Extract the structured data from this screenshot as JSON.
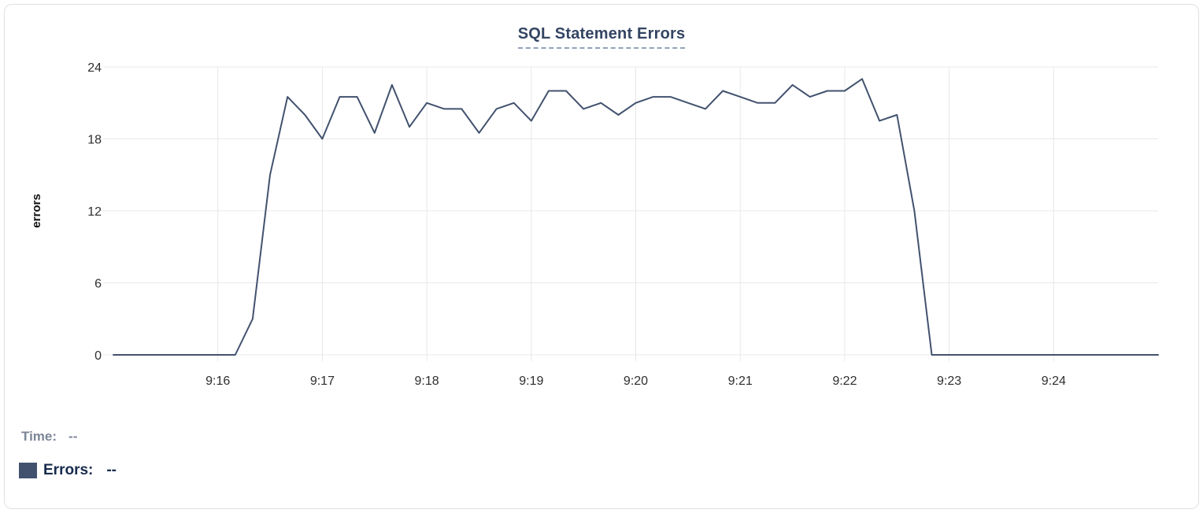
{
  "card": {
    "title": "SQL Statement Errors"
  },
  "legend": {
    "time_label": "Time:",
    "time_value": "--",
    "errors_label": "Errors:",
    "errors_value": "--",
    "swatch_color": "#42526e"
  },
  "colors": {
    "line": "#42526e",
    "title": "#344563",
    "grid": "#e8e8e8",
    "time_text": "#7c8698",
    "errors_text": "#172b4d"
  },
  "chart_data": {
    "type": "line",
    "title": "SQL Statement Errors",
    "xlabel": "",
    "ylabel": "errors",
    "x_start": "9:15:00",
    "x_end": "9:25:00",
    "x_ticks": [
      "9:16",
      "9:17",
      "9:18",
      "9:19",
      "9:20",
      "9:21",
      "9:22",
      "9:23",
      "9:24"
    ],
    "y_ticks": [
      0,
      6,
      12,
      18,
      24
    ],
    "ylim": [
      0,
      24
    ],
    "grid": true,
    "grid_color": "#e8e8e8",
    "line_color": "#42526e",
    "legend_position": "bottom-left",
    "series": [
      {
        "name": "Errors",
        "times": [
          "9:15:00",
          "9:15:10",
          "9:15:20",
          "9:15:30",
          "9:15:40",
          "9:15:50",
          "9:16:00",
          "9:16:10",
          "9:16:20",
          "9:16:30",
          "9:16:40",
          "9:16:50",
          "9:17:00",
          "9:17:10",
          "9:17:20",
          "9:17:30",
          "9:17:40",
          "9:17:50",
          "9:18:00",
          "9:18:10",
          "9:18:20",
          "9:18:30",
          "9:18:40",
          "9:18:50",
          "9:19:00",
          "9:19:10",
          "9:19:20",
          "9:19:30",
          "9:19:40",
          "9:19:50",
          "9:20:00",
          "9:20:10",
          "9:20:20",
          "9:20:30",
          "9:20:40",
          "9:20:50",
          "9:21:00",
          "9:21:10",
          "9:21:20",
          "9:21:30",
          "9:21:40",
          "9:21:50",
          "9:22:00",
          "9:22:10",
          "9:22:20",
          "9:22:30",
          "9:22:40",
          "9:22:50",
          "9:23:00",
          "9:23:10",
          "9:23:20",
          "9:23:30",
          "9:23:40",
          "9:23:50",
          "9:24:00",
          "9:24:10",
          "9:24:20",
          "9:24:30",
          "9:24:40",
          "9:24:50",
          "9:25:00"
        ],
        "values": [
          0,
          0,
          0,
          0,
          0,
          0,
          0,
          0,
          3,
          15,
          21.5,
          20,
          18,
          21.5,
          21.5,
          18.5,
          22.5,
          19,
          21,
          20.5,
          20.5,
          18.5,
          20.5,
          21,
          19.5,
          22,
          22,
          20.5,
          21,
          20,
          21,
          21.5,
          21.5,
          21,
          20.5,
          22,
          21.5,
          21,
          21,
          22.5,
          21.5,
          22,
          22,
          23,
          19.5,
          20,
          12,
          0,
          0,
          0,
          0,
          0,
          0,
          0,
          0,
          0,
          0,
          0,
          0,
          0,
          0
        ]
      }
    ]
  }
}
